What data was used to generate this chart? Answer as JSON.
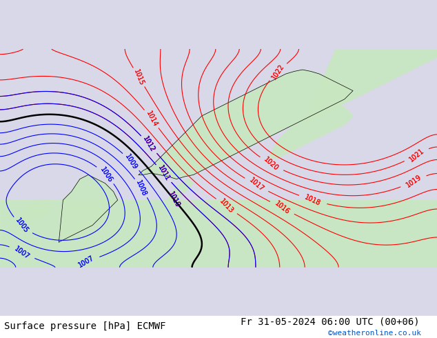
{
  "title_left": "Surface pressure [hPa] ECMWF",
  "title_right": "Fr 31-05-2024 06:00 UTC (00+06)",
  "copyright": "©weatheronline.co.uk",
  "bg_color": "#d8d8e8",
  "land_color": "#c8e8c0",
  "text_color_left": "#000000",
  "text_color_right": "#000000",
  "copyright_color": "#0055cc",
  "bottom_bar_color": "#ffffff",
  "font_size_bottom": 10,
  "fig_width": 6.34,
  "fig_height": 4.9
}
